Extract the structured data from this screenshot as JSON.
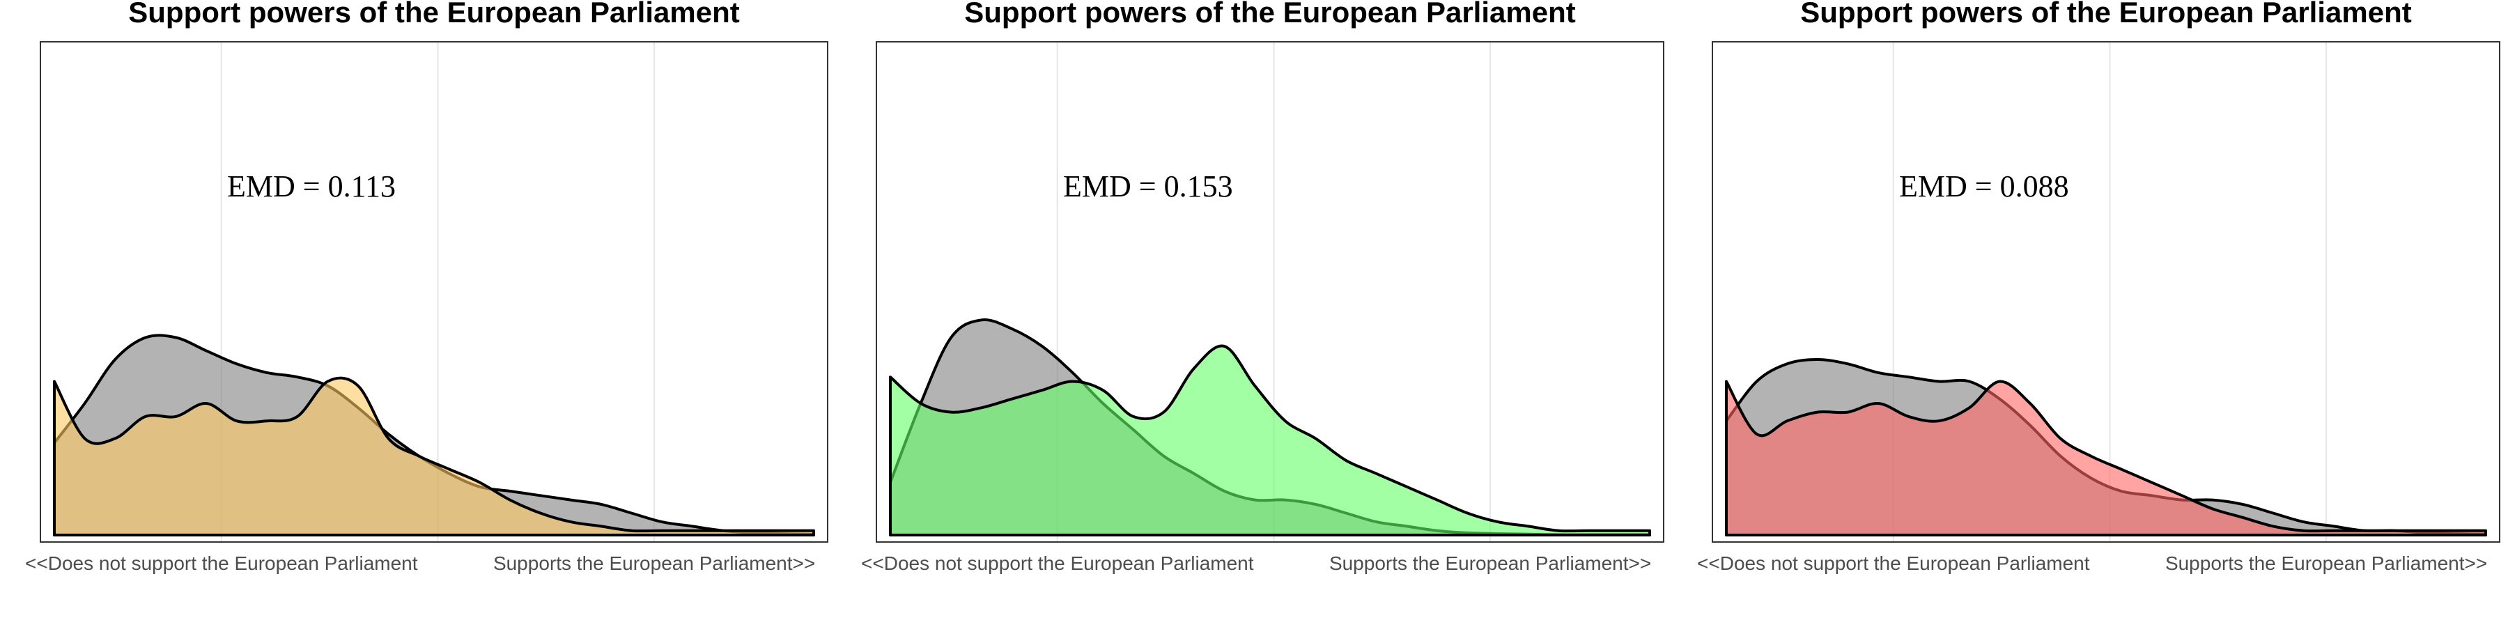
{
  "chart_data": [
    {
      "type": "area",
      "title": "Support powers of the European Parliament",
      "annotation": "EMD = 0.113",
      "xlim": [
        0,
        1
      ],
      "ylim": [
        0,
        1
      ],
      "grid": true,
      "x_ticks": [
        {
          "value": 0.22,
          "label": "<<Does not support the European Parliament"
        },
        {
          "value": 0.79,
          "label": "Supports the European Parliament>>"
        }
      ],
      "fill_opacity": 0.6,
      "x": [
        0,
        0.04,
        0.08,
        0.12,
        0.16,
        0.2,
        0.24,
        0.28,
        0.32,
        0.36,
        0.4,
        0.44,
        0.48,
        0.52,
        0.56,
        0.6,
        0.64,
        0.68,
        0.72,
        0.76,
        0.8,
        0.84,
        0.88,
        0.92,
        0.96,
        1.0
      ],
      "series": [
        {
          "color": "#808080",
          "values": [
            0.21,
            0.3,
            0.4,
            0.45,
            0.45,
            0.42,
            0.39,
            0.37,
            0.36,
            0.34,
            0.29,
            0.23,
            0.18,
            0.14,
            0.11,
            0.1,
            0.09,
            0.08,
            0.07,
            0.05,
            0.03,
            0.02,
            0.01,
            0.005,
            0.003,
            0.002
          ]
        },
        {
          "color": "#ffc864",
          "values": [
            0.35,
            0.22,
            0.22,
            0.27,
            0.27,
            0.3,
            0.26,
            0.26,
            0.27,
            0.35,
            0.34,
            0.22,
            0.18,
            0.15,
            0.12,
            0.08,
            0.05,
            0.03,
            0.02,
            0.01,
            0.01,
            0.01,
            0.01,
            0.01,
            0.01,
            0.01
          ]
        }
      ]
    },
    {
      "type": "area",
      "title": "Support powers of the European Parliament",
      "annotation": "EMD = 0.153",
      "xlim": [
        0,
        1
      ],
      "ylim": [
        0,
        1
      ],
      "grid": true,
      "x_ticks": [
        {
          "value": 0.22,
          "label": "<<Does not support the European Parliament"
        },
        {
          "value": 0.79,
          "label": "Supports the European Parliament>>"
        }
      ],
      "fill_opacity": 0.6,
      "x": [
        0,
        0.04,
        0.08,
        0.12,
        0.16,
        0.2,
        0.24,
        0.28,
        0.32,
        0.36,
        0.4,
        0.44,
        0.48,
        0.52,
        0.56,
        0.6,
        0.64,
        0.68,
        0.72,
        0.76,
        0.8,
        0.84,
        0.88,
        0.92,
        0.96,
        1.0
      ],
      "series": [
        {
          "color": "#808080",
          "values": [
            0.12,
            0.3,
            0.45,
            0.49,
            0.47,
            0.43,
            0.37,
            0.3,
            0.24,
            0.18,
            0.14,
            0.1,
            0.08,
            0.08,
            0.07,
            0.05,
            0.03,
            0.02,
            0.01,
            0.005,
            0.003,
            0.002,
            0.001,
            0.001,
            0.001,
            0.001
          ]
        },
        {
          "color": "#66ff66",
          "values": [
            0.36,
            0.3,
            0.28,
            0.29,
            0.31,
            0.33,
            0.35,
            0.33,
            0.27,
            0.28,
            0.38,
            0.43,
            0.34,
            0.26,
            0.22,
            0.17,
            0.14,
            0.11,
            0.08,
            0.05,
            0.03,
            0.02,
            0.01,
            0.01,
            0.01,
            0.01
          ]
        }
      ]
    },
    {
      "type": "area",
      "title": "Support powers of the European Parliament",
      "annotation": "EMD = 0.088",
      "xlim": [
        0,
        1
      ],
      "ylim": [
        0,
        1
      ],
      "grid": true,
      "x_ticks": [
        {
          "value": 0.22,
          "label": "<<Does not support the European Parliament"
        },
        {
          "value": 0.79,
          "label": "Supports the European Parliament>>"
        }
      ],
      "fill_opacity": 0.6,
      "x": [
        0,
        0.04,
        0.08,
        0.12,
        0.16,
        0.2,
        0.24,
        0.28,
        0.32,
        0.36,
        0.4,
        0.44,
        0.48,
        0.52,
        0.56,
        0.6,
        0.64,
        0.68,
        0.72,
        0.76,
        0.8,
        0.84,
        0.88,
        0.92,
        0.96,
        1.0
      ],
      "series": [
        {
          "color": "#808080",
          "values": [
            0.26,
            0.35,
            0.39,
            0.4,
            0.39,
            0.37,
            0.36,
            0.35,
            0.35,
            0.31,
            0.25,
            0.18,
            0.13,
            0.1,
            0.09,
            0.08,
            0.08,
            0.07,
            0.05,
            0.03,
            0.02,
            0.01,
            0.01,
            0.005,
            0.003,
            0.002
          ]
        },
        {
          "color": "#ff6666",
          "values": [
            0.35,
            0.23,
            0.26,
            0.28,
            0.28,
            0.3,
            0.27,
            0.26,
            0.29,
            0.35,
            0.3,
            0.22,
            0.18,
            0.15,
            0.12,
            0.09,
            0.06,
            0.04,
            0.02,
            0.01,
            0.01,
            0.01,
            0.01,
            0.01,
            0.01,
            0.01
          ]
        }
      ]
    }
  ]
}
